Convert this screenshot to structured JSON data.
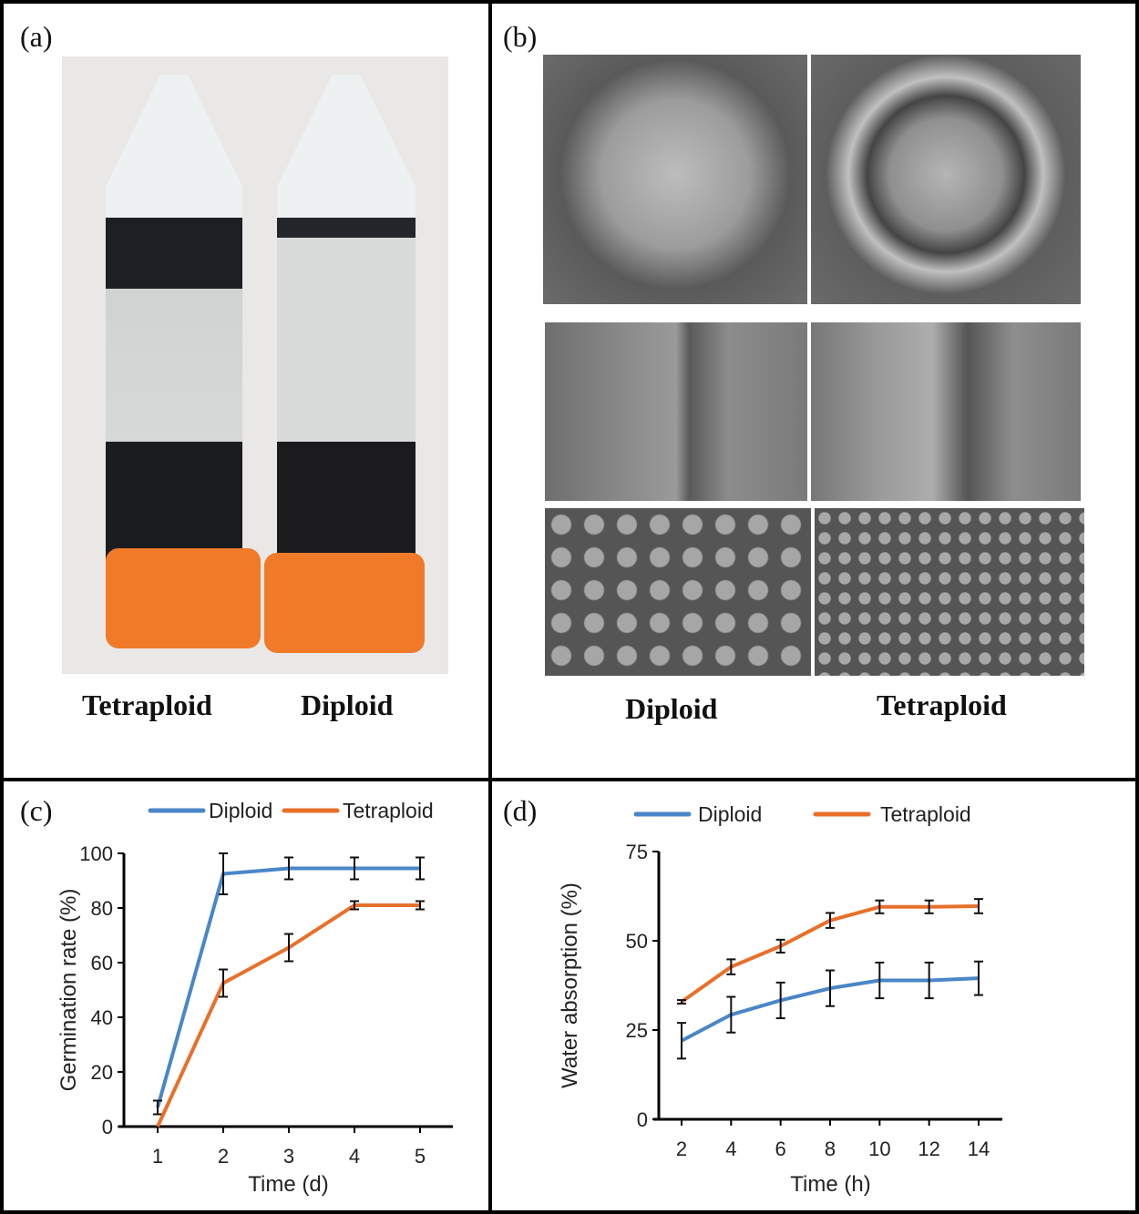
{
  "panels": {
    "a": {
      "label": "(a)",
      "captions": [
        "Tetraploid",
        "Diploid"
      ]
    },
    "b": {
      "label": "(b)",
      "captions": [
        "Diploid",
        "Tetraploid"
      ]
    },
    "c": {
      "label": "(c)"
    },
    "d": {
      "label": "(d)"
    }
  },
  "colors": {
    "diploid": "#4a86c8",
    "tetraploid": "#e8702a",
    "cap": "#f07a28"
  },
  "chart_data": [
    {
      "type": "line",
      "panel": "c",
      "xlabel": "Time (d)",
      "ylabel": "Germination rate (%)",
      "x": [
        1,
        2,
        3,
        4,
        5
      ],
      "ylim": [
        0,
        100
      ],
      "yticks": [
        0,
        20,
        40,
        60,
        80,
        100
      ],
      "legend": "top",
      "grid": false,
      "series": [
        {
          "name": "Diploid",
          "values": [
            7,
            92.5,
            94.5,
            94.5,
            94.5
          ],
          "errors": [
            2.5,
            7.5,
            4,
            4,
            4
          ]
        },
        {
          "name": "Tetraploid",
          "values": [
            0,
            52.5,
            65.5,
            81,
            81
          ],
          "errors": [
            0,
            5,
            5,
            1.5,
            1.5
          ]
        }
      ]
    },
    {
      "type": "line",
      "panel": "d",
      "xlabel": "Time (h)",
      "ylabel": "Water absorption (%)",
      "x": [
        2,
        4,
        6,
        8,
        10,
        12,
        14
      ],
      "ylim": [
        0,
        75
      ],
      "yticks": [
        0,
        25,
        50,
        75
      ],
      "legend": "top",
      "grid": false,
      "series": [
        {
          "name": "Diploid",
          "values": [
            22,
            29.3,
            33.3,
            36.7,
            38.9,
            38.9,
            39.5
          ],
          "errors": [
            5,
            5,
            5,
            5,
            5,
            5,
            4.7
          ]
        },
        {
          "name": "Tetraploid",
          "values": [
            32.9,
            42.7,
            48.5,
            55.7,
            59.5,
            59.5,
            59.7
          ],
          "errors": [
            0.5,
            2.1,
            1.8,
            2.1,
            1.8,
            1.8,
            2
          ]
        }
      ]
    }
  ]
}
